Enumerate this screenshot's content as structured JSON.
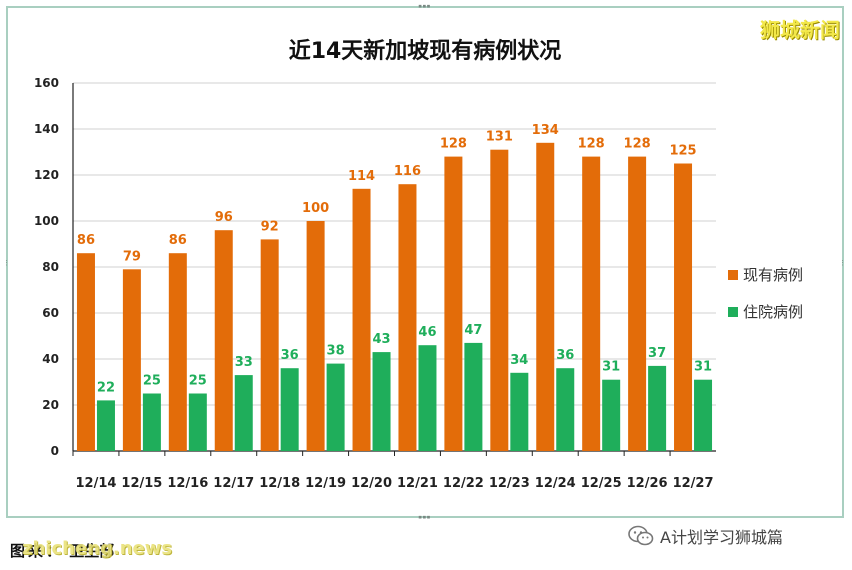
{
  "brand": "狮城新闻",
  "source_label": "图来：",
  "source_value": "卫生部",
  "watermark": "zhicheng.news",
  "wechat_account": "A计划学习狮城篇",
  "colors": {
    "current": "#E36C09",
    "hospital": "#1FAE5B",
    "frame": "#A9CFC0"
  },
  "chart_data": {
    "type": "bar",
    "title": "近14天新加坡现有病例状况",
    "categories": [
      "12/14",
      "12/15",
      "12/16",
      "12/17",
      "12/18",
      "12/19",
      "12/20",
      "12/21",
      "12/22",
      "12/23",
      "12/24",
      "12/25",
      "12/26",
      "12/27"
    ],
    "series": [
      {
        "name": "现有病例",
        "color": "#E36C09",
        "values": [
          86,
          79,
          86,
          96,
          92,
          100,
          114,
          116,
          128,
          131,
          134,
          128,
          128,
          125
        ]
      },
      {
        "name": "住院病例",
        "color": "#1FAE5B",
        "values": [
          22,
          25,
          25,
          33,
          36,
          38,
          43,
          46,
          47,
          34,
          36,
          31,
          37,
          31
        ]
      }
    ],
    "ylim": [
      0,
      160
    ],
    "yticks": [
      0,
      20,
      40,
      60,
      80,
      100,
      120,
      140,
      160
    ],
    "grid": true,
    "legend_position": "right"
  }
}
